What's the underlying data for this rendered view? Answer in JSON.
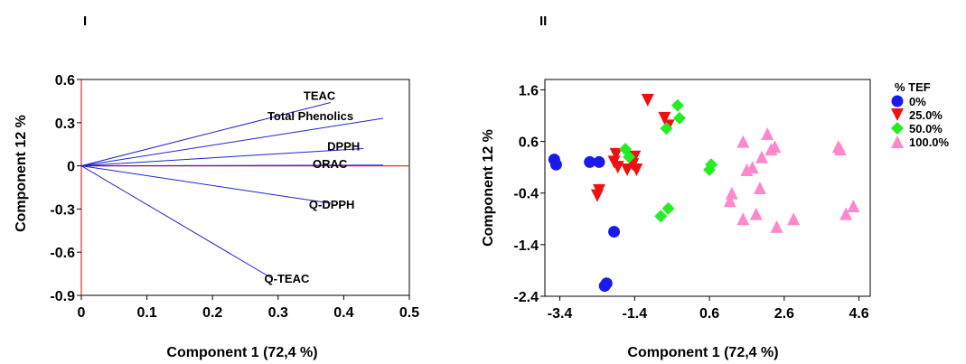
{
  "chart_data": [
    {
      "type": "biplot",
      "panel_label": "I",
      "xlabel": "Component 1 (72,4 %)",
      "ylabel": "Component 12 %",
      "xlim": [
        0,
        0.5
      ],
      "ylim": [
        -0.9,
        0.6
      ],
      "xticks": [
        "0",
        "0.1",
        "0.2",
        "0.3",
        "0.4",
        "0.5"
      ],
      "xtick_values": [
        0,
        0.1,
        0.2,
        0.3,
        0.4,
        0.5
      ],
      "yticks": [
        "0.6",
        "0.3",
        "0",
        "-0.3",
        "-0.6",
        "-0.9"
      ],
      "ytick_values": [
        0.6,
        0.3,
        0,
        -0.3,
        -0.6,
        -0.9
      ],
      "reference_lines_color": "#e03030",
      "vector_color": "#2222cc",
      "vectors": [
        {
          "label": "TEAC",
          "x": 0.38,
          "y": 0.44
        },
        {
          "label": "Total Phenolics",
          "x": 0.46,
          "y": 0.33
        },
        {
          "label": "DPPH",
          "x": 0.43,
          "y": 0.12
        },
        {
          "label": "ORAC",
          "x": 0.46,
          "y": 0.005
        },
        {
          "label": "Q-DPPH",
          "x": 0.38,
          "y": -0.26
        },
        {
          "label": "Q-TEAC",
          "x": 0.29,
          "y": -0.78
        }
      ]
    },
    {
      "type": "scatter",
      "panel_label": "II",
      "xlabel": "Component 1 (72,4 %)",
      "ylabel": "Component 12 %",
      "xlim": [
        -3.8,
        4.9
      ],
      "ylim": [
        -2.4,
        1.8
      ],
      "xticks": [
        "-3.4",
        "-1.4",
        "0.6",
        "2.6",
        "4.6"
      ],
      "xtick_values": [
        -3.4,
        -1.4,
        0.6,
        2.6,
        4.6
      ],
      "yticks": [
        "1.6",
        "0.6",
        "-0.4",
        "-1.4",
        "-2.4"
      ],
      "ytick_values": [
        1.6,
        0.6,
        -0.4,
        -1.4,
        -2.4
      ],
      "legend_title": "% TEF",
      "legend_position": "top-right",
      "series": [
        {
          "name": "0%",
          "marker": "circle",
          "color": "#1a1aee",
          "points": [
            [
              -3.55,
              0.25
            ],
            [
              -3.5,
              0.15
            ],
            [
              -2.6,
              0.2
            ],
            [
              -2.35,
              0.2
            ],
            [
              -2.2,
              -2.2
            ],
            [
              -2.15,
              -2.15
            ],
            [
              -1.95,
              -1.15
            ]
          ]
        },
        {
          "name": "25.0%",
          "marker": "triangle-down",
          "color": "#ee1111",
          "points": [
            [
              -2.4,
              -0.45
            ],
            [
              -2.35,
              -0.35
            ],
            [
              -1.9,
              0.35
            ],
            [
              -1.95,
              0.2
            ],
            [
              -1.85,
              0.1
            ],
            [
              -1.6,
              0.05
            ],
            [
              -1.4,
              0.3
            ],
            [
              -1.45,
              0.15
            ],
            [
              -1.35,
              0.05
            ],
            [
              -1.05,
              1.4
            ],
            [
              -0.6,
              1.05
            ],
            [
              -0.5,
              0.9
            ]
          ]
        },
        {
          "name": "50.0%",
          "marker": "diamond",
          "color": "#22ee22",
          "points": [
            [
              -1.65,
              0.45
            ],
            [
              -1.55,
              0.3
            ],
            [
              -0.7,
              -0.85
            ],
            [
              -0.5,
              -0.7
            ],
            [
              -0.55,
              0.85
            ],
            [
              -0.25,
              1.3
            ],
            [
              -0.2,
              1.05
            ],
            [
              0.6,
              0.05
            ],
            [
              0.65,
              0.15
            ]
          ]
        },
        {
          "name": "100.0%",
          "marker": "triangle-up",
          "color": "#ff88cc",
          "points": [
            [
              1.2,
              -0.4
            ],
            [
              1.15,
              -0.55
            ],
            [
              1.5,
              0.6
            ],
            [
              1.5,
              -0.9
            ],
            [
              1.6,
              0.05
            ],
            [
              1.75,
              0.1
            ],
            [
              1.85,
              -0.8
            ],
            [
              1.95,
              -0.3
            ],
            [
              2.0,
              0.3
            ],
            [
              2.15,
              0.75
            ],
            [
              2.25,
              0.45
            ],
            [
              2.35,
              0.5
            ],
            [
              2.4,
              -1.05
            ],
            [
              2.85,
              -0.9
            ],
            [
              4.05,
              0.5
            ],
            [
              4.1,
              0.45
            ],
            [
              4.25,
              -0.8
            ],
            [
              4.45,
              -0.65
            ]
          ]
        }
      ]
    }
  ]
}
